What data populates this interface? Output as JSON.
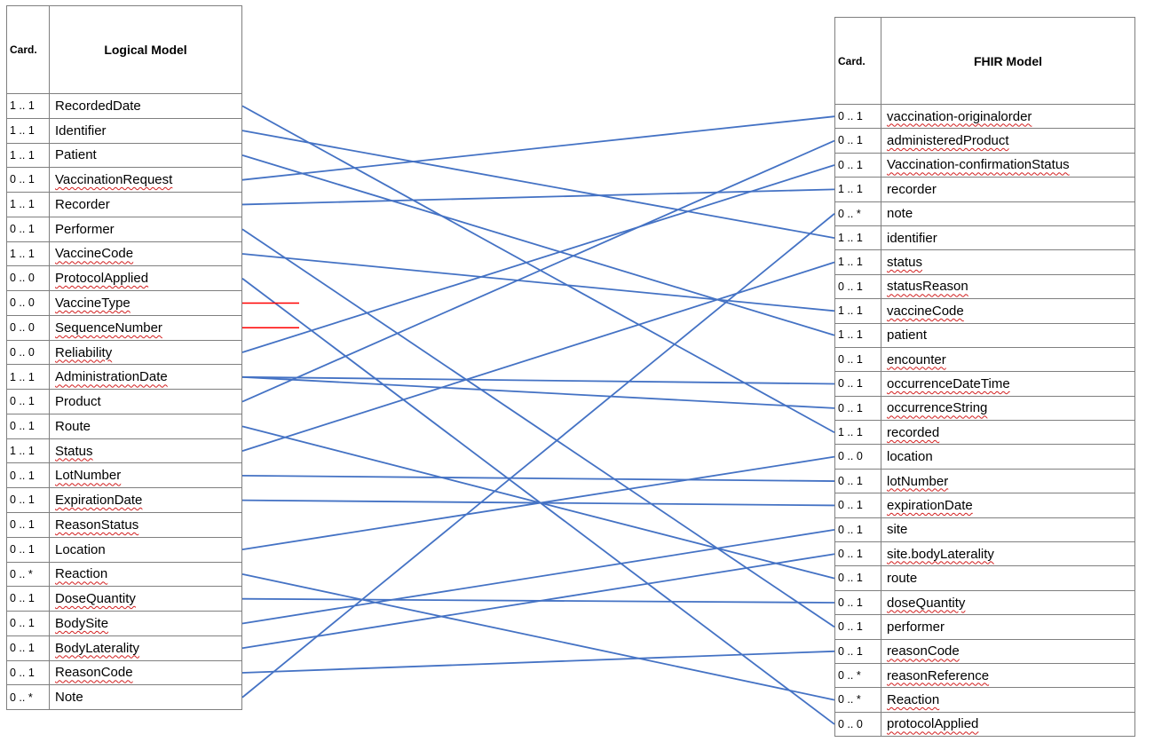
{
  "colors": {
    "link": "#4472c4",
    "removed": "#ff0000",
    "border": "#7f7f7f",
    "spellcheck": "#d21f1f"
  },
  "logical": {
    "header_card": "Card.",
    "header_title": "Logical Model",
    "rows": [
      {
        "card": "1 .. 1",
        "name": "RecordedDate",
        "sq": false
      },
      {
        "card": "1 .. 1",
        "name": "Identifier",
        "sq": false
      },
      {
        "card": "1 .. 1",
        "name": "Patient",
        "sq": false
      },
      {
        "card": "0 .. 1",
        "name": "VaccinationRequest",
        "sq": true
      },
      {
        "card": "1 .. 1",
        "name": "Recorder",
        "sq": false
      },
      {
        "card": "0 .. 1",
        "name": "Performer",
        "sq": false
      },
      {
        "card": "1 .. 1",
        "name": "VaccineCode",
        "sq": true
      },
      {
        "card": "0 .. 0",
        "name": "ProtocolApplied",
        "sq": true
      },
      {
        "card": "0 .. 0",
        "name": "VaccineType",
        "sq": true
      },
      {
        "card": "0 .. 0",
        "name": "SequenceNumber",
        "sq": true
      },
      {
        "card": "0 .. 0",
        "name": "Reliability",
        "sq": true
      },
      {
        "card": "1 .. 1",
        "name": "AdministrationDate",
        "sq": true
      },
      {
        "card": "0 .. 1",
        "name": "Product",
        "sq": false
      },
      {
        "card": "0 .. 1",
        "name": "Route",
        "sq": false
      },
      {
        "card": "1 .. 1",
        "name": "Status",
        "sq": true
      },
      {
        "card": "0 .. 1",
        "name": "LotNumber",
        "sq": true
      },
      {
        "card": "0 .. 1",
        "name": "ExpirationDate",
        "sq": true
      },
      {
        "card": "0 .. 1",
        "name": "ReasonStatus",
        "sq": true
      },
      {
        "card": "0 .. 1",
        "name": "Location",
        "sq": false
      },
      {
        "card": "0 .. *",
        "name": "Reaction",
        "sq": true
      },
      {
        "card": "0 .. 1",
        "name": "DoseQuantity",
        "sq": true
      },
      {
        "card": "0 .. 1",
        "name": "BodySite",
        "sq": true
      },
      {
        "card": "0 .. 1",
        "name": "BodyLaterality",
        "sq": true
      },
      {
        "card": "0 .. 1",
        "name": "ReasonCode",
        "sq": true
      },
      {
        "card": "0 .. *",
        "name": "Note",
        "sq": false
      }
    ]
  },
  "fhir": {
    "header_card": "Card.",
    "header_title": "FHIR Model",
    "rows": [
      {
        "card": "0 .. 1",
        "name": "vaccination-originalorder",
        "sq": true
      },
      {
        "card": "0 .. 1",
        "name": "administeredProduct",
        "sq": true
      },
      {
        "card": "0 .. 1",
        "name": "Vaccination-confirmationStatus",
        "sq": true
      },
      {
        "card": "1 .. 1",
        "name": "recorder",
        "sq": false
      },
      {
        "card": "0 .. *",
        "name": "note",
        "sq": false
      },
      {
        "card": "1 .. 1",
        "name": "identifier",
        "sq": false
      },
      {
        "card": "1 .. 1",
        "name": "status",
        "sq": true
      },
      {
        "card": "0 .. 1",
        "name": "statusReason",
        "sq": true
      },
      {
        "card": "1 .. 1",
        "name": "vaccineCode",
        "sq": true
      },
      {
        "card": "1 .. 1",
        "name": "patient",
        "sq": false
      },
      {
        "card": "0 .. 1",
        "name": "encounter",
        "sq": true
      },
      {
        "card": "0 .. 1",
        "name": "occurrenceDateTime",
        "sq": true
      },
      {
        "card": "0 .. 1",
        "name": "occurrenceString",
        "sq": true
      },
      {
        "card": "1 .. 1",
        "name": "recorded",
        "sq": true
      },
      {
        "card": "0 .. 0",
        "name": "location",
        "sq": false
      },
      {
        "card": "0 .. 1",
        "name": "lotNumber",
        "sq": true
      },
      {
        "card": "0 .. 1",
        "name": "expirationDate",
        "sq": true
      },
      {
        "card": "0 .. 1",
        "name": "site",
        "sq": false
      },
      {
        "card": "0 .. 1",
        "name": "site.bodyLaterality",
        "sq": true
      },
      {
        "card": "0 .. 1",
        "name": "route",
        "sq": false
      },
      {
        "card": "0 .. 1",
        "name": "doseQuantity",
        "sq": true
      },
      {
        "card": "0 .. 1",
        "name": "performer",
        "sq": false
      },
      {
        "card": "0 .. 1",
        "name": "reasonCode",
        "sq": true
      },
      {
        "card": "0 .. *",
        "name": "reasonReference",
        "sq": true
      },
      {
        "card": "0 .. *",
        "name": "Reaction",
        "sq": true
      },
      {
        "card": "0 .. 0",
        "name": "protocolApplied",
        "sq": true
      }
    ]
  },
  "mappings": [
    {
      "from": "RecordedDate",
      "to": "recorded"
    },
    {
      "from": "Identifier",
      "to": "identifier"
    },
    {
      "from": "Patient",
      "to": "patient"
    },
    {
      "from": "VaccinationRequest",
      "to": "vaccination-originalorder"
    },
    {
      "from": "Recorder",
      "to": "recorder"
    },
    {
      "from": "Performer",
      "to": "performer"
    },
    {
      "from": "VaccineCode",
      "to": "vaccineCode"
    },
    {
      "from": "ProtocolApplied",
      "to": "protocolApplied"
    },
    {
      "from": "Reliability",
      "to": "Vaccination-confirmationStatus"
    },
    {
      "from": "AdministrationDate",
      "to": "occurrenceDateTime"
    },
    {
      "from": "AdministrationDate",
      "to": "occurrenceString"
    },
    {
      "from": "Product",
      "to": "administeredProduct"
    },
    {
      "from": "Route",
      "to": "route"
    },
    {
      "from": "Status",
      "to": "status"
    },
    {
      "from": "LotNumber",
      "to": "lotNumber"
    },
    {
      "from": "ExpirationDate",
      "to": "expirationDate"
    },
    {
      "from": "Location",
      "to": "location"
    },
    {
      "from": "Reaction",
      "to": "Reaction"
    },
    {
      "from": "DoseQuantity",
      "to": "doseQuantity"
    },
    {
      "from": "BodySite",
      "to": "site"
    },
    {
      "from": "BodyLaterality",
      "to": "site.bodyLaterality"
    },
    {
      "from": "ReasonCode",
      "to": "reasonCode"
    },
    {
      "from": "Note",
      "to": "note"
    }
  ],
  "unmapped": [
    "VaccineType",
    "SequenceNumber"
  ]
}
